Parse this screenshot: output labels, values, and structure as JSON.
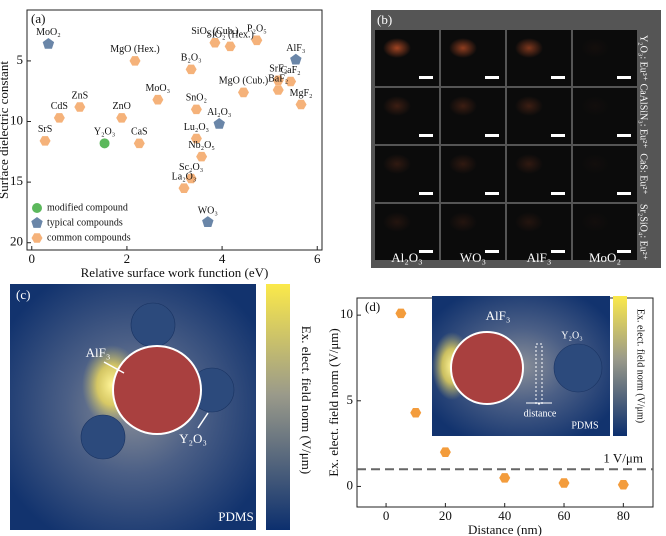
{
  "chart_data": [
    {
      "type": "scatter",
      "panel_label": "(a)",
      "x_label": "Relative surface work function (eV)",
      "y_label": "Surface dielectric constant",
      "xlim": [
        -0.1,
        6.1
      ],
      "xticks": [
        0,
        2,
        4,
        6
      ],
      "ylim": [
        0.8,
        20.6
      ],
      "yticks": [
        5,
        10,
        15,
        20
      ],
      "y_inverted": true,
      "legend": "lower left",
      "series": [
        {
          "name": "modified compound",
          "color": "#5cb85c",
          "marker": "circle",
          "x": [
            1.53
          ],
          "values": [
            11.8
          ],
          "labels": [
            "Y₂O₃"
          ]
        },
        {
          "name": "typical compounds",
          "color": "#6a86a8",
          "marker": "pentagon",
          "x": [
            0.35,
            5.55,
            3.94,
            3.7
          ],
          "values": [
            3.6,
            4.9,
            10.2,
            18.3
          ],
          "labels": [
            "MoO₂",
            "AlF₃",
            "Al₂O₃",
            "WO₃"
          ]
        },
        {
          "name": "common compounds",
          "color": "#f5b27a",
          "marker": "hexagon",
          "x": [
            2.17,
            3.85,
            4.73,
            4.17,
            3.35,
            5.44,
            5.18,
            4.45,
            5.18,
            2.65,
            3.46,
            5.66,
            0.58,
            1.01,
            1.89,
            0.28,
            2.26,
            3.46,
            3.57,
            3.35,
            3.2
          ],
          "values": [
            5.0,
            3.5,
            3.3,
            3.8,
            5.7,
            6.7,
            6.6,
            7.6,
            7.4,
            8.2,
            9.0,
            8.6,
            9.7,
            8.8,
            9.7,
            11.6,
            11.8,
            11.4,
            12.9,
            14.7,
            15.5
          ],
          "labels": [
            "MgO (Hex.)",
            "SiO₂ (Cub.)",
            "P₂O₅",
            "SiO₂ (Hex.)",
            "B₂O₃",
            "CaF₂",
            "SrF₂",
            "MgO (Cub.)",
            "BaF₂",
            "MoO₃",
            "SnO₂",
            "MgF₂",
            "CdS",
            "ZnS",
            "ZnO",
            "SrS",
            "CaS",
            "Lu₂O₃",
            "Nb₂O₅",
            "Sc₂O₃",
            "La₂O₃"
          ]
        }
      ]
    },
    {
      "type": "image-grid",
      "panel_label": "(b)",
      "columns": [
        "Al₂O₃",
        "WO₃",
        "AlF₃",
        "MoO₂"
      ],
      "rows": [
        "Y₂O₃: Eu³⁺",
        "CaAlSiN₃: Eu²⁺",
        "CaS: Eu²⁺",
        "Sr₂SiO₄: Eu²⁺"
      ]
    },
    {
      "type": "field-map",
      "panel_label": "(c)",
      "colorbar_label": "Ex. elect. field norm (V/μm)",
      "labels": {
        "host": "AlF₃",
        "neighbor": "Y₂O₃",
        "medium": "PDMS"
      }
    },
    {
      "type": "scatter",
      "panel_label": "(d)",
      "x_label": "Distance (nm)",
      "y_label": "Ex. elect. field norm (V/μm)",
      "xlim": [
        -9.8,
        90
      ],
      "xticks": [
        0,
        20,
        40,
        60,
        80
      ],
      "ylim": [
        -1.2,
        11
      ],
      "yticks": [
        0,
        5,
        10
      ],
      "x": [
        5,
        10,
        20,
        40,
        60,
        80
      ],
      "values": [
        10.1,
        4.3,
        2.0,
        0.5,
        0.2,
        0.1
      ],
      "color": "#f39c3c",
      "marker": "hexagon",
      "reference_line": {
        "value": 1,
        "label": "1 V/μm"
      },
      "inset": {
        "colorbar_label": "Ex. elect. field norm (V/μm)",
        "labels": {
          "host": "AlF₃",
          "neighbor": "Y₂O₃",
          "gap": "distance",
          "medium": "PDMS"
        }
      }
    }
  ]
}
